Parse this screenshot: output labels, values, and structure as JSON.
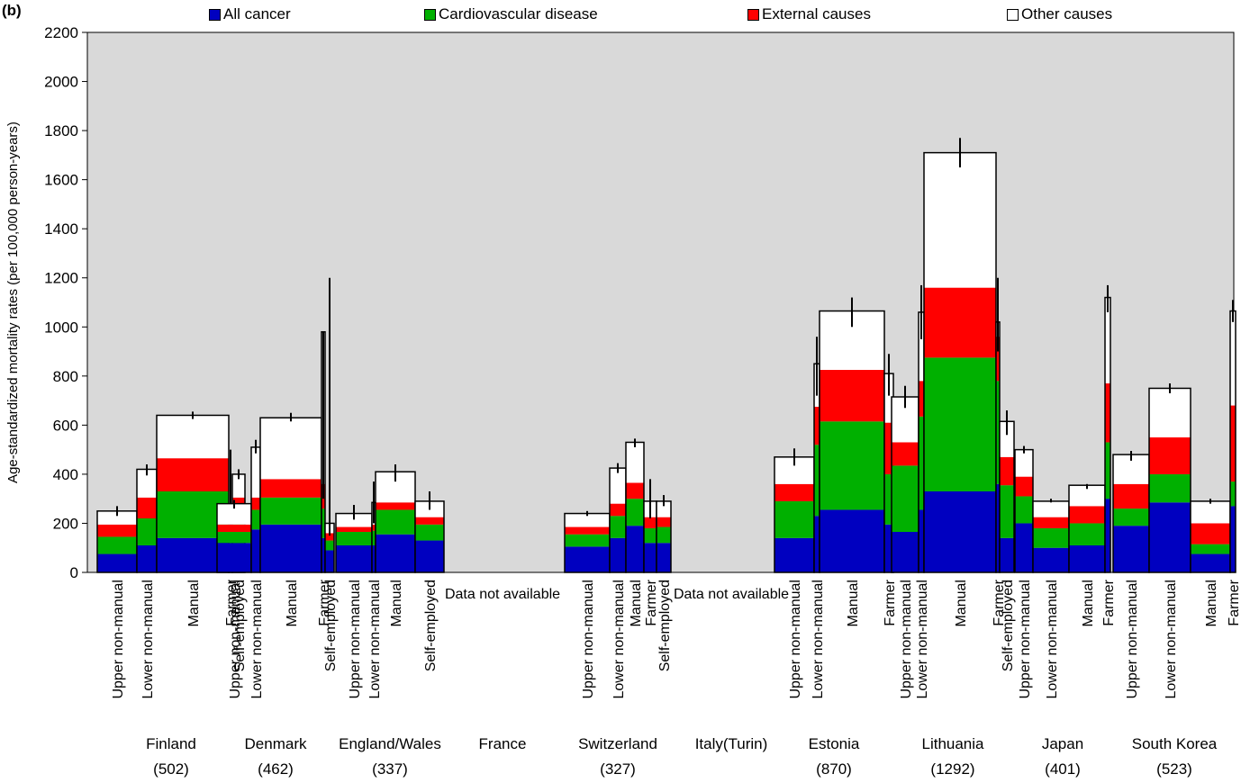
{
  "panel_label": "(b)",
  "chart_data": {
    "type": "bar",
    "stacked": true,
    "title": "",
    "xlabel": "",
    "ylabel": "Age-standardized mortality rates (per 100,000 person-years)",
    "ylim": [
      0,
      2200
    ],
    "yticks": [
      0,
      200,
      400,
      600,
      800,
      1000,
      1200,
      1400,
      1600,
      1800,
      2000,
      2200
    ],
    "grid": false,
    "background_color": "#d9d9d9",
    "legend_position": "top",
    "bar_width_encodes": "population share of occupational class",
    "series": [
      {
        "name": "All cancer",
        "color": "#0000c0"
      },
      {
        "name": "Cardiovascular disease",
        "color": "#00b000"
      },
      {
        "name": "External causes",
        "color": "#ff0000"
      },
      {
        "name": "Other causes",
        "color": "#ffffff"
      }
    ],
    "countries": [
      {
        "name": "Finland",
        "total": "(502)",
        "bars": [
          {
            "label": "Upper non-manual",
            "values": [
              75,
              70,
              50,
              55
            ],
            "ci": [
              230,
              270
            ]
          },
          {
            "label": "Lower non-manual",
            "values": [
              110,
              110,
              85,
              115
            ],
            "ci": [
              395,
              440
            ]
          },
          {
            "label": "Manual",
            "values": [
              140,
              190,
              135,
              175
            ],
            "ci": [
              625,
              655
            ]
          },
          {
            "label": "Farmer",
            "values": [
              85,
              70,
              50,
              25
            ],
            "ci": [
              160,
              500
            ]
          },
          {
            "label": "Self-employed",
            "values": [
              110,
              110,
              85,
              95
            ],
            "ci": [
              380,
              420
            ]
          }
        ]
      },
      {
        "name": "Denmark",
        "total": "(462)",
        "bars": [
          {
            "label": "Upper non-manual",
            "values": [
              120,
              45,
              30,
              85
            ],
            "ci": [
              260,
              295
            ]
          },
          {
            "label": "Lower non-manual",
            "values": [
              175,
              80,
              50,
              205
            ],
            "ci": [
              485,
              540
            ]
          },
          {
            "label": "Manual",
            "values": [
              195,
              110,
              75,
              250
            ],
            "ci": [
              615,
              650
            ]
          },
          {
            "label": "Farmer",
            "values": [
              140,
              120,
              100,
              620
            ],
            "ci": [
              300,
              980
            ]
          },
          {
            "label": "Self-employed",
            "values": [
              90,
              40,
              30,
              40
            ],
            "ci": [
              150,
              1200
            ]
          }
        ]
      },
      {
        "name": "England/Wales",
        "total": "(337)",
        "bars": [
          {
            "label": "Upper non-manual",
            "values": [
              110,
              55,
              20,
              55
            ],
            "ci": [
              215,
              275
            ]
          },
          {
            "label": "Lower non-manual",
            "values": [
              110,
              60,
              25,
              90
            ],
            "ci": [
              200,
              370
            ]
          },
          {
            "label": "Manual",
            "values": [
              155,
              100,
              30,
              125
            ],
            "ci": [
              370,
              440
            ]
          },
          {
            "label": "Self-employed",
            "values": [
              130,
              65,
              30,
              65
            ],
            "ci": [
              255,
              330
            ]
          }
        ]
      },
      {
        "name": "France",
        "total": "",
        "not_available": "Data not available",
        "bars": []
      },
      {
        "name": "Switzerland",
        "total": "(327)",
        "bars": [
          {
            "label": "Upper non-manual",
            "values": [
              105,
              50,
              30,
              55
            ],
            "ci": [
              230,
              250
            ]
          },
          {
            "label": "Lower non-manual",
            "values": [
              140,
              90,
              50,
              145
            ],
            "ci": [
              405,
              445
            ]
          },
          {
            "label": "Manual",
            "values": [
              190,
              110,
              65,
              165
            ],
            "ci": [
              510,
              545
            ]
          },
          {
            "label": "Farmer",
            "values": [
              120,
              60,
              45,
              65
            ],
            "ci": [
              220,
              380
            ]
          },
          {
            "label": "Self-employed",
            "values": [
              120,
              65,
              40,
              65
            ],
            "ci": [
              270,
              315
            ]
          }
        ]
      },
      {
        "name": "Italy(Turin)",
        "total": "",
        "not_available": "Data not available",
        "bars": []
      },
      {
        "name": "Estonia",
        "total": "(870)",
        "bars": [
          {
            "label": "Upper non-manual",
            "values": [
              140,
              150,
              70,
              110
            ],
            "ci": [
              435,
              505
            ]
          },
          {
            "label": "Lower non-manual",
            "values": [
              230,
              290,
              155,
              175
            ],
            "ci": [
              720,
              960
            ]
          },
          {
            "label": "Manual",
            "values": [
              255,
              360,
              210,
              240
            ],
            "ci": [
              1000,
              1120
            ]
          },
          {
            "label": "Farmer",
            "values": [
              195,
              205,
              210,
              200
            ],
            "ci": [
              720,
              890
            ]
          }
        ]
      },
      {
        "name": "Lithuania",
        "total": "(1292)",
        "bars": [
          {
            "label": "Upper non-manual",
            "values": [
              165,
              270,
              95,
              185
            ],
            "ci": [
              670,
              760
            ]
          },
          {
            "label": "Lower non-manual",
            "values": [
              255,
              380,
              145,
              280
            ],
            "ci": [
              950,
              1170
            ]
          },
          {
            "label": "Manual",
            "values": [
              330,
              545,
              285,
              550
            ],
            "ci": [
              1650,
              1770
            ]
          },
          {
            "label": "Farmer",
            "values": [
              360,
              420,
              180,
              60
            ],
            "ci": [
              900,
              1200
            ]
          },
          {
            "label": "Self-employed",
            "values": [
              140,
              215,
              115,
              145
            ],
            "ci": [
              560,
              660
            ]
          }
        ]
      },
      {
        "name": "Japan",
        "total": "(401)",
        "bars": [
          {
            "label": "Upper non-manual",
            "values": [
              200,
              110,
              80,
              110
            ],
            "ci": [
              485,
              515
            ]
          },
          {
            "label": "Lower non-manual",
            "values": [
              100,
              80,
              45,
              65
            ],
            "ci": [
              285,
              300
            ]
          },
          {
            "label": "Manual",
            "values": [
              110,
              90,
              70,
              85
            ],
            "ci": [
              340,
              360
            ]
          },
          {
            "label": "Farmer",
            "values": [
              300,
              230,
              240,
              350
            ],
            "ci": [
              1060,
              1170
            ]
          }
        ]
      },
      {
        "name": "South Korea",
        "total": "(523)",
        "bars": [
          {
            "label": "Upper non-manual",
            "values": [
              190,
              70,
              100,
              120
            ],
            "ci": [
              455,
              495
            ]
          },
          {
            "label": "Lower non-manual",
            "values": [
              285,
              115,
              150,
              200
            ],
            "ci": [
              730,
              770
            ]
          },
          {
            "label": "Manual",
            "values": [
              75,
              40,
              85,
              90
            ],
            "ci": [
              280,
              300
            ]
          },
          {
            "label": "Farmer",
            "values": [
              270,
              100,
              310,
              385
            ],
            "ci": [
              1020,
              1110
            ]
          }
        ]
      }
    ]
  }
}
